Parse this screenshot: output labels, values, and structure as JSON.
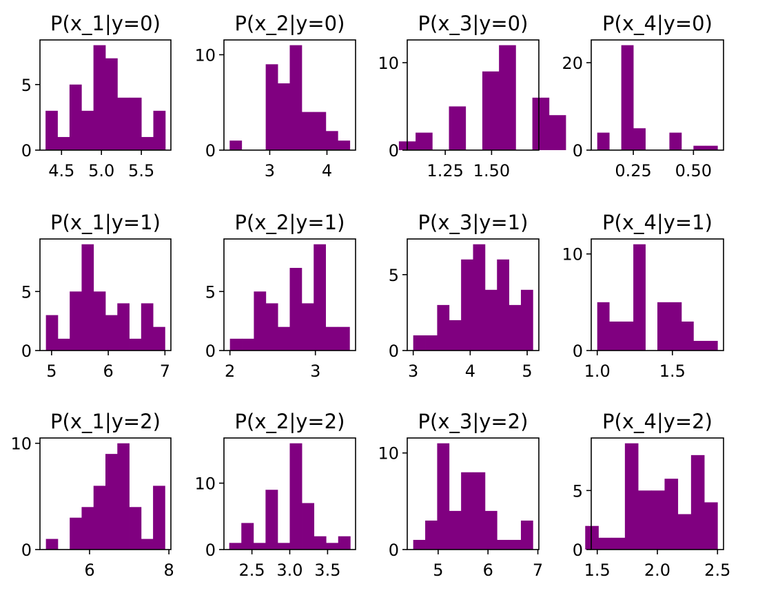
{
  "bar_color": "#800080",
  "chart_data": [
    {
      "type": "bar",
      "title": "P(x_1|y=0)",
      "xlim": [
        4.23,
        5.87
      ],
      "ylim": [
        0,
        8.4
      ],
      "xticks": [
        {
          "v": 4.5,
          "label": "4.5"
        },
        {
          "v": 5.0,
          "label": "5.0"
        },
        {
          "v": 5.5,
          "label": "5.5"
        }
      ],
      "yticks": [
        {
          "v": 0,
          "label": "0"
        },
        {
          "v": 5,
          "label": "5"
        }
      ],
      "bin_range": [
        4.3,
        5.8
      ],
      "values": [
        3,
        1,
        5,
        3,
        8,
        7,
        4,
        4,
        1,
        3
      ]
    },
    {
      "type": "bar",
      "title": "P(x_2|y=0)",
      "xlim": [
        2.2,
        4.5
      ],
      "ylim": [
        0,
        11.55
      ],
      "xticks": [
        {
          "v": 3,
          "label": "3"
        },
        {
          "v": 4,
          "label": "4"
        }
      ],
      "yticks": [
        {
          "v": 0,
          "label": "0"
        },
        {
          "v": 10,
          "label": "10"
        }
      ],
      "bin_range": [
        2.3,
        4.4
      ],
      "values": [
        1,
        0,
        0,
        9,
        7,
        11,
        4,
        4,
        2,
        1
      ]
    },
    {
      "type": "bar",
      "title": "P(x_3|y=0)",
      "xlim": [
        1.045,
        1.755
      ],
      "ylim": [
        0,
        12.6
      ],
      "xticks": [
        {
          "v": 1.25,
          "label": "1.25"
        },
        {
          "v": 1.5,
          "label": "1.50"
        }
      ],
      "yticks": [
        {
          "v": 0,
          "label": "0"
        },
        {
          "v": 10,
          "label": "10"
        }
      ],
      "bin_range": [
        1.0,
        1.9
      ],
      "values": [
        1,
        2,
        0,
        5,
        0,
        9,
        12,
        0,
        6,
        4
      ]
    },
    {
      "type": "bar",
      "title": "P(x_4|y=0)",
      "xlim": [
        0.075,
        0.625
      ],
      "ylim": [
        0,
        25.2
      ],
      "xticks": [
        {
          "v": 0.25,
          "label": "0.25"
        },
        {
          "v": 0.5,
          "label": "0.50"
        }
      ],
      "yticks": [
        {
          "v": 0,
          "label": "0"
        },
        {
          "v": 20,
          "label": "20"
        }
      ],
      "bin_range": [
        0.1,
        0.6
      ],
      "values": [
        4,
        0,
        24,
        5,
        0,
        0,
        4,
        0,
        1,
        1
      ]
    },
    {
      "type": "bar",
      "title": "P(x_1|y=1)",
      "xlim": [
        4.795,
        7.105
      ],
      "ylim": [
        0,
        9.45
      ],
      "xticks": [
        {
          "v": 5,
          "label": "5"
        },
        {
          "v": 6,
          "label": "6"
        },
        {
          "v": 7,
          "label": "7"
        }
      ],
      "yticks": [
        {
          "v": 0,
          "label": "0"
        },
        {
          "v": 5,
          "label": "5"
        }
      ],
      "bin_range": [
        4.9,
        7.0
      ],
      "values": [
        3,
        1,
        5,
        9,
        5,
        3,
        4,
        1,
        4,
        2
      ]
    },
    {
      "type": "bar",
      "title": "P(x_2|y=1)",
      "xlim": [
        1.93,
        3.47
      ],
      "ylim": [
        0,
        9.45
      ],
      "xticks": [
        {
          "v": 2,
          "label": "2"
        },
        {
          "v": 3,
          "label": "3"
        }
      ],
      "yticks": [
        {
          "v": 0,
          "label": "0"
        },
        {
          "v": 5,
          "label": "5"
        }
      ],
      "bin_range": [
        2.0,
        3.4
      ],
      "values": [
        1,
        1,
        5,
        4,
        2,
        7,
        4,
        9,
        2,
        2
      ]
    },
    {
      "type": "bar",
      "title": "P(x_3|y=1)",
      "xlim": [
        2.895,
        5.205
      ],
      "ylim": [
        0,
        7.35
      ],
      "xticks": [
        {
          "v": 3,
          "label": "3"
        },
        {
          "v": 4,
          "label": "4"
        },
        {
          "v": 5,
          "label": "5"
        }
      ],
      "yticks": [
        {
          "v": 0,
          "label": "0"
        },
        {
          "v": 5,
          "label": "5"
        }
      ],
      "bin_range": [
        3.0,
        5.1
      ],
      "values": [
        1,
        1,
        3,
        2,
        6,
        7,
        4,
        6,
        3,
        4
      ]
    },
    {
      "type": "bar",
      "title": "P(x_4|y=1)",
      "xlim": [
        0.96,
        1.84
      ],
      "ylim": [
        0,
        11.55
      ],
      "xticks": [
        {
          "v": 1.0,
          "label": "1.0"
        },
        {
          "v": 1.5,
          "label": "1.5"
        }
      ],
      "yticks": [
        {
          "v": 0,
          "label": "0"
        },
        {
          "v": 10,
          "label": "10"
        }
      ],
      "bin_range": [
        1.0,
        1.8
      ],
      "values": [
        5,
        3,
        3,
        11,
        0,
        5,
        5,
        3,
        1,
        1
      ]
    },
    {
      "type": "bar",
      "title": "P(x_1|y=2)",
      "xlim": [
        4.75,
        8.05
      ],
      "ylim": [
        0,
        10.5
      ],
      "xticks": [
        {
          "v": 6,
          "label": "6"
        },
        {
          "v": 8,
          "label": "8"
        }
      ],
      "yticks": [
        {
          "v": 0,
          "label": "0"
        },
        {
          "v": 10,
          "label": "10"
        }
      ],
      "bin_range": [
        4.9,
        7.9
      ],
      "values": [
        1,
        0,
        3,
        4,
        6,
        9,
        10,
        4,
        1,
        6
      ]
    },
    {
      "type": "bar",
      "title": "P(x_2|y=2)",
      "xlim": [
        2.13,
        3.87
      ],
      "ylim": [
        0,
        16.8
      ],
      "xticks": [
        {
          "v": 2.5,
          "label": "2.5"
        },
        {
          "v": 3.0,
          "label": "3.0"
        },
        {
          "v": 3.5,
          "label": "3.5"
        }
      ],
      "yticks": [
        {
          "v": 0,
          "label": "0"
        },
        {
          "v": 10,
          "label": "10"
        }
      ],
      "bin_range": [
        2.2,
        3.8
      ],
      "values": [
        1,
        4,
        1,
        9,
        1,
        16,
        7,
        2,
        1,
        2
      ]
    },
    {
      "type": "bar",
      "title": "P(x_3|y=2)",
      "xlim": [
        4.38,
        7.02
      ],
      "ylim": [
        0,
        11.55
      ],
      "xticks": [
        {
          "v": 5,
          "label": "5"
        },
        {
          "v": 6,
          "label": "6"
        },
        {
          "v": 7,
          "label": "7"
        }
      ],
      "yticks": [
        {
          "v": 0,
          "label": "0"
        },
        {
          "v": 10,
          "label": "10"
        }
      ],
      "bin_range": [
        4.5,
        6.9
      ],
      "values": [
        1,
        3,
        11,
        4,
        8,
        8,
        4,
        1,
        1,
        3
      ]
    },
    {
      "type": "bar",
      "title": "P(x_4|y=2)",
      "xlim": [
        1.45,
        2.55
      ],
      "ylim": [
        0,
        9.45
      ],
      "xticks": [
        {
          "v": 1.5,
          "label": "1.5"
        },
        {
          "v": 2.0,
          "label": "2.0"
        },
        {
          "v": 2.5,
          "label": "2.5"
        }
      ],
      "yticks": [
        {
          "v": 0,
          "label": "0"
        },
        {
          "v": 5,
          "label": "5"
        }
      ],
      "bin_range": [
        1.4,
        2.5
      ],
      "values": [
        2,
        1,
        1,
        9,
        5,
        5,
        6,
        3,
        8,
        4
      ]
    }
  ]
}
